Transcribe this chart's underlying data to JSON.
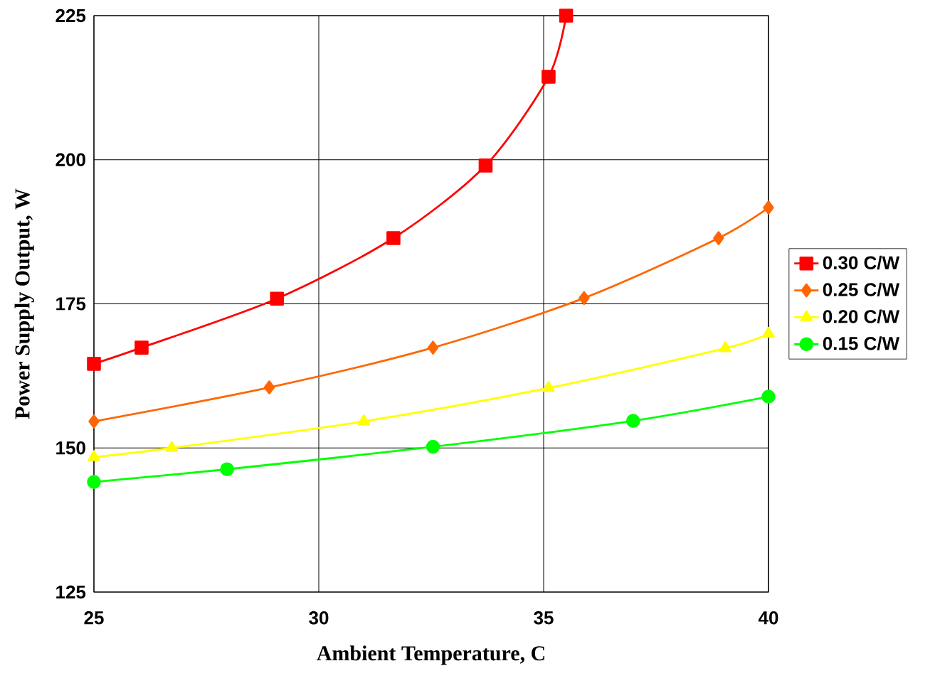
{
  "chart_data": {
    "type": "line",
    "xlabel": "Ambient Temperature, C",
    "ylabel": "Power Supply Output, W",
    "xlim": [
      25,
      40
    ],
    "xticks": [
      25,
      30,
      35,
      40
    ],
    "ylim": [
      125,
      225
    ],
    "yticks": [
      125,
      150,
      175,
      200,
      225
    ],
    "grid": true,
    "legend": "right",
    "line_style": "solid",
    "series": [
      {
        "name": "0.30 C/W",
        "color": "#ff0000",
        "marker": "square",
        "x": [
          25,
          26.06,
          29.07,
          31.66,
          33.71,
          35.11,
          35.5
        ],
        "values": [
          164.6,
          167.4,
          175.9,
          186.4,
          199,
          214.4,
          225
        ]
      },
      {
        "name": "0.25 C/W",
        "color": "#ff6600",
        "marker": "diamond",
        "x": [
          25,
          28.9,
          32.54,
          35.9,
          38.89,
          40
        ],
        "values": [
          154.6,
          160.5,
          167.4,
          176.0,
          186.4,
          191.7
        ]
      },
      {
        "name": "0.20 C/W",
        "color": "#ffff00",
        "marker": "triangle",
        "x": [
          25,
          26.73,
          31.0,
          35.11,
          39.04,
          40
        ],
        "values": [
          148.4,
          150.0,
          154.6,
          160.4,
          167.3,
          169.8
        ]
      },
      {
        "name": "0.15 C/W",
        "color": "#00ff00",
        "marker": "circle",
        "x": [
          25,
          27.96,
          32.54,
          36.99,
          40
        ],
        "values": [
          144.1,
          146.3,
          150.2,
          154.7,
          158.9
        ]
      }
    ]
  }
}
